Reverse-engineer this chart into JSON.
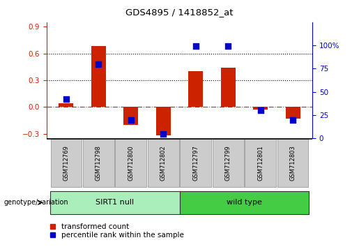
{
  "title": "GDS4895 / 1418852_at",
  "samples": [
    "GSM712769",
    "GSM712798",
    "GSM712800",
    "GSM712802",
    "GSM712797",
    "GSM712799",
    "GSM712801",
    "GSM712803"
  ],
  "groups": [
    {
      "name": "SIRT1 null",
      "indices": [
        0,
        1,
        2,
        3
      ],
      "color": "#AAEEBB"
    },
    {
      "name": "wild type",
      "indices": [
        4,
        5,
        6,
        7
      ],
      "color": "#44CC44"
    }
  ],
  "red_bars": [
    0.04,
    0.68,
    -0.2,
    -0.32,
    0.4,
    0.44,
    -0.03,
    -0.13
  ],
  "blue_dot_percentiles": [
    42,
    80,
    20,
    5,
    99,
    99,
    30,
    20
  ],
  "ylim_left": [
    -0.35,
    0.95
  ],
  "ylim_right": [
    0,
    125
  ],
  "yticks_left": [
    -0.3,
    0.0,
    0.3,
    0.6,
    0.9
  ],
  "yticks_right": [
    0,
    25,
    50,
    75,
    100
  ],
  "ytick_labels_right": [
    "0",
    "25",
    "50",
    "75",
    "100%"
  ],
  "hlines": [
    0.3,
    0.6
  ],
  "red_color": "#CC2200",
  "blue_color": "#0000CC",
  "zero_line_color": "#CC2200",
  "bar_width": 0.45,
  "dot_size": 30,
  "left_label_color": "#CC2200",
  "right_label_color": "#0000CC",
  "legend_red_label": "transformed count",
  "legend_blue_label": "percentile rank within the sample",
  "genotype_label": "genotype/variation",
  "sample_box_color": "#CCCCCC",
  "sample_box_edge": "#999999",
  "group_edge_color": "#333333"
}
